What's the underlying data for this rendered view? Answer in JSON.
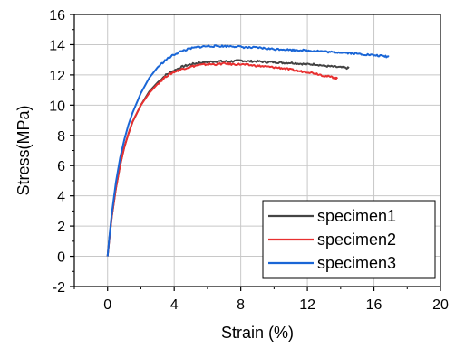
{
  "chart_data": {
    "type": "line",
    "title": "",
    "xlabel": "Strain (%)",
    "ylabel": "Stress(MPa)",
    "xlim": [
      -2,
      20
    ],
    "ylim": [
      -2,
      16
    ],
    "x_ticks": [
      0,
      4,
      8,
      12,
      16,
      20
    ],
    "y_ticks": [
      -2,
      0,
      2,
      4,
      6,
      8,
      10,
      12,
      14,
      16
    ],
    "grid": true,
    "legend_position": "bottom-right",
    "series": [
      {
        "name": "specimen1",
        "color": "#444444",
        "x": [
          0,
          0.1,
          0.25,
          0.5,
          0.75,
          1.0,
          1.25,
          1.5,
          2.0,
          2.5,
          3.0,
          3.5,
          4.0,
          4.5,
          5.0,
          5.5,
          6.0,
          6.5,
          7.0,
          7.5,
          8.0,
          8.5,
          9.0,
          9.5,
          10.0,
          10.5,
          11.0,
          11.5,
          12.0,
          12.5,
          13.0,
          13.5,
          14.0,
          14.5
        ],
        "y": [
          0,
          1.1,
          2.6,
          4.5,
          6.0,
          7.2,
          8.1,
          8.9,
          10.0,
          10.9,
          11.5,
          12.0,
          12.3,
          12.55,
          12.7,
          12.8,
          12.85,
          12.9,
          12.9,
          12.9,
          12.95,
          12.9,
          12.9,
          12.85,
          12.85,
          12.8,
          12.8,
          12.75,
          12.7,
          12.7,
          12.6,
          12.55,
          12.5,
          12.45
        ]
      },
      {
        "name": "specimen2",
        "color": "#e83030",
        "x": [
          0,
          0.1,
          0.25,
          0.5,
          0.75,
          1.0,
          1.25,
          1.5,
          2.0,
          2.5,
          3.0,
          3.5,
          4.0,
          4.5,
          5.0,
          5.5,
          6.0,
          6.5,
          7.0,
          7.5,
          8.0,
          8.5,
          9.0,
          9.5,
          10.0,
          10.5,
          11.0,
          11.5,
          12.0,
          12.5,
          13.0,
          13.5,
          13.8
        ],
        "y": [
          0,
          1.1,
          2.6,
          4.5,
          6.0,
          7.2,
          8.1,
          8.9,
          10.0,
          10.8,
          11.4,
          11.9,
          12.2,
          12.4,
          12.55,
          12.65,
          12.7,
          12.7,
          12.75,
          12.7,
          12.7,
          12.65,
          12.6,
          12.55,
          12.5,
          12.45,
          12.35,
          12.25,
          12.2,
          12.1,
          11.95,
          11.85,
          11.75
        ]
      },
      {
        "name": "specimen3",
        "color": "#1a66d6",
        "x": [
          0,
          0.1,
          0.25,
          0.5,
          0.75,
          1.0,
          1.25,
          1.5,
          2.0,
          2.5,
          3.0,
          3.5,
          4.0,
          4.5,
          5.0,
          5.5,
          6.0,
          6.5,
          7.0,
          7.5,
          8.0,
          8.5,
          9.0,
          9.5,
          10.0,
          10.5,
          11.0,
          11.5,
          12.0,
          12.5,
          13.0,
          13.5,
          14.0,
          14.5,
          15.0,
          15.5,
          16.0,
          16.5,
          16.9
        ],
        "y": [
          0,
          1.2,
          2.8,
          4.9,
          6.5,
          7.7,
          8.7,
          9.5,
          10.8,
          11.8,
          12.5,
          13.0,
          13.35,
          13.6,
          13.75,
          13.85,
          13.9,
          13.9,
          13.9,
          13.9,
          13.85,
          13.8,
          13.8,
          13.75,
          13.7,
          13.7,
          13.65,
          13.65,
          13.6,
          13.6,
          13.55,
          13.5,
          13.5,
          13.45,
          13.4,
          13.35,
          13.3,
          13.25,
          13.2
        ]
      }
    ]
  }
}
